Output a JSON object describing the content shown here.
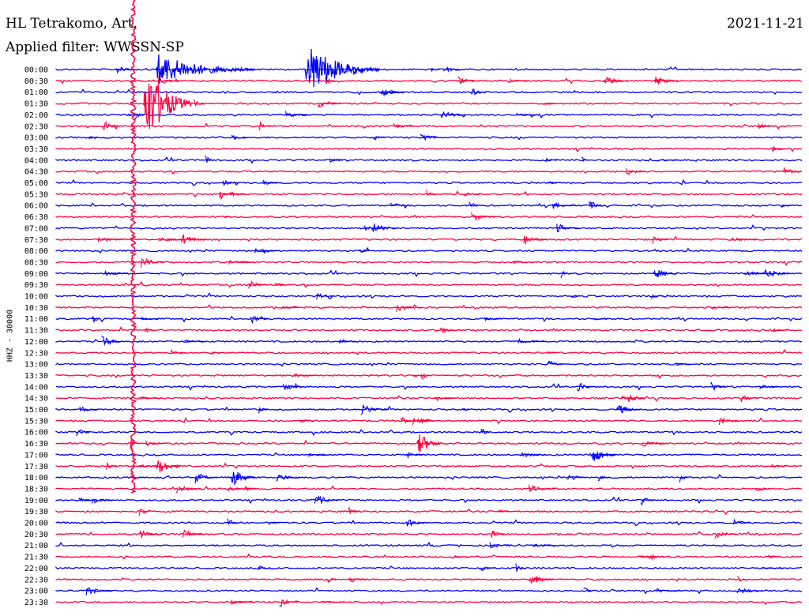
{
  "header": {
    "station": "HL Tetrakomo, Art.",
    "filter": "Applied filter: WWSSN-SP",
    "date": "2021-11-21"
  },
  "chart_data": {
    "type": "line",
    "title": "HL Tetrakomo, Art.",
    "subtitle": "Applied filter: WWSSN-SP",
    "ylabel": "HHZ - 30000",
    "rows": [
      "00:00",
      "00:30",
      "01:00",
      "01:30",
      "02:00",
      "02:30",
      "03:00",
      "03:30",
      "04:00",
      "04:30",
      "05:00",
      "05:30",
      "06:00",
      "06:30",
      "07:00",
      "07:30",
      "08:00",
      "08:30",
      "09:00",
      "09:30",
      "10:00",
      "10:30",
      "11:00",
      "11:30",
      "12:00",
      "12:30",
      "13:00",
      "13:30",
      "14:00",
      "14:30",
      "15:00",
      "15:30",
      "16:00",
      "16:30",
      "17:00",
      "17:30",
      "18:00",
      "18:30",
      "19:00",
      "19:30",
      "20:00",
      "20:30",
      "21:00",
      "21:30",
      "22:00",
      "22:30",
      "23:00",
      "23:30"
    ],
    "colors": {
      "even_rows": "#0000ff",
      "odd_rows": "#ff0040"
    },
    "grid": false,
    "events": [
      {
        "row": 0,
        "minute": 4,
        "amplitude": 22,
        "duration": 4
      },
      {
        "row": 0,
        "minute": 10,
        "amplitude": 36,
        "duration": 3
      },
      {
        "row": 1,
        "minute": 22,
        "amplitude": 7,
        "duration": 1
      },
      {
        "row": 1,
        "minute": 24,
        "amplitude": 9,
        "duration": 1
      },
      {
        "row": 2,
        "minute": 13,
        "amplitude": 7,
        "duration": 1
      },
      {
        "row": 3,
        "minute": 3.5,
        "amplitude": 60,
        "duration": 2
      },
      {
        "row": 15,
        "minute": 5,
        "amplitude": 8,
        "duration": 1
      },
      {
        "row": 18,
        "minute": 24,
        "amplitude": 9,
        "duration": 1
      },
      {
        "row": 30,
        "minute": 22.5,
        "amplitude": 9,
        "duration": 1
      },
      {
        "row": 33,
        "minute": 14.5,
        "amplitude": 20,
        "duration": 1
      },
      {
        "row": 34,
        "minute": 21.5,
        "amplitude": 14,
        "duration": 1
      },
      {
        "row": 35,
        "minute": 4,
        "amplitude": 14,
        "duration": 1
      },
      {
        "row": 36,
        "minute": 7,
        "amplitude": 16,
        "duration": 1
      },
      {
        "row": 45,
        "minute": 19,
        "amplitude": 9,
        "duration": 1
      }
    ]
  }
}
